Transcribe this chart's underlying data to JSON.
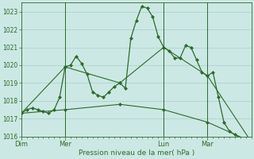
{
  "bg_color": "#cce8e4",
  "grid_color": "#aaceca",
  "line_color": "#2d6a2d",
  "marker_color": "#2d6a2d",
  "xlabel": "Pression niveau de la mer( hPa )",
  "xlabel_color": "#2d6a2d",
  "tick_color": "#2d6a2d",
  "ylim": [
    1016.0,
    1023.5
  ],
  "yticks": [
    1016,
    1017,
    1018,
    1019,
    1020,
    1021,
    1022,
    1023
  ],
  "day_labels": [
    "Dim",
    "Mer",
    "Lun",
    "Mar"
  ],
  "day_positions": [
    0,
    16,
    52,
    68
  ],
  "xlim": [
    0,
    84
  ],
  "series1_x": [
    0,
    2,
    4,
    6,
    8,
    10,
    12,
    14,
    16,
    18,
    20,
    22,
    24,
    26,
    28,
    30,
    32,
    34,
    36,
    38,
    40,
    42,
    44,
    46,
    48,
    50,
    52,
    54,
    56,
    58,
    60,
    62,
    64,
    66,
    68,
    70,
    72,
    74,
    76,
    78,
    80,
    82,
    84
  ],
  "series1_y": [
    1017.3,
    1017.5,
    1017.6,
    1017.5,
    1017.4,
    1017.3,
    1017.5,
    1018.2,
    1019.9,
    1020.0,
    1020.5,
    1020.1,
    1019.5,
    1018.5,
    1018.3,
    1018.2,
    1018.5,
    1018.8,
    1019.0,
    1018.7,
    1021.5,
    1022.5,
    1023.3,
    1023.2,
    1022.7,
    1021.6,
    1021.0,
    1020.8,
    1020.4,
    1020.4,
    1021.1,
    1021.0,
    1020.3,
    1019.6,
    1019.4,
    1019.6,
    1018.2,
    1016.8,
    1016.3,
    1016.1,
    1015.9,
    1015.8,
    1015.7
  ],
  "series2_x": [
    0,
    16,
    36,
    52,
    68,
    84
  ],
  "series2_y": [
    1017.3,
    1019.9,
    1019.0,
    1021.0,
    1019.4,
    1015.7
  ],
  "series3_x": [
    0,
    16,
    36,
    52,
    68,
    84
  ],
  "series3_y": [
    1017.3,
    1017.5,
    1017.8,
    1017.5,
    1016.8,
    1015.7
  ]
}
